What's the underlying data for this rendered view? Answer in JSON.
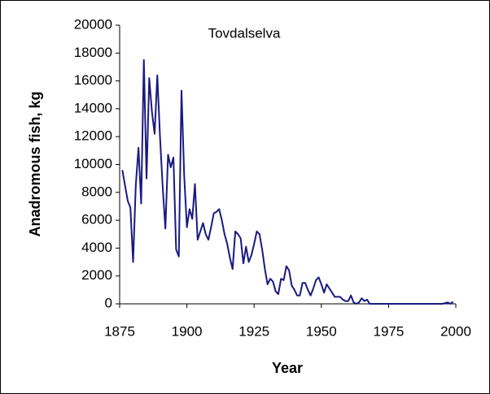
{
  "chart_data": {
    "type": "line",
    "title": "Tovdalselva",
    "x_label": "Year",
    "y_label": "Anadromous fish, kg",
    "x": [
      1876,
      1877,
      1878,
      1879,
      1880,
      1881,
      1882,
      1883,
      1884,
      1885,
      1886,
      1887,
      1888,
      1889,
      1890,
      1891,
      1892,
      1893,
      1894,
      1895,
      1896,
      1897,
      1898,
      1899,
      1900,
      1901,
      1902,
      1903,
      1904,
      1905,
      1906,
      1907,
      1908,
      1909,
      1910,
      1911,
      1912,
      1913,
      1914,
      1915,
      1916,
      1917,
      1918,
      1919,
      1920,
      1921,
      1922,
      1923,
      1924,
      1925,
      1926,
      1927,
      1928,
      1929,
      1930,
      1931,
      1932,
      1933,
      1934,
      1935,
      1936,
      1937,
      1938,
      1939,
      1940,
      1941,
      1942,
      1943,
      1944,
      1945,
      1946,
      1947,
      1948,
      1949,
      1950,
      1951,
      1952,
      1953,
      1954,
      1955,
      1956,
      1957,
      1958,
      1959,
      1960,
      1961,
      1962,
      1963,
      1964,
      1965,
      1966,
      1967,
      1968,
      1969,
      1970,
      1971,
      1972,
      1973,
      1974,
      1975,
      1976,
      1977,
      1978,
      1979,
      1980,
      1981,
      1982,
      1983,
      1984,
      1985,
      1986,
      1987,
      1988,
      1989,
      1990,
      1991,
      1992,
      1993,
      1994,
      1995,
      1996,
      1997,
      1998,
      1999
    ],
    "values": [
      9600,
      8500,
      7400,
      6900,
      3000,
      8500,
      11200,
      7200,
      17500,
      9000,
      16200,
      13800,
      12200,
      16400,
      12000,
      8400,
      5400,
      10700,
      9800,
      10500,
      3900,
      3400,
      15300,
      9200,
      5500,
      6800,
      6100,
      8600,
      4600,
      5200,
      5800,
      5000,
      4600,
      5500,
      6500,
      6600,
      6800,
      6000,
      5000,
      4300,
      3300,
      2500,
      5200,
      5000,
      4700,
      2900,
      4100,
      3000,
      3500,
      4300,
      5200,
      5000,
      3900,
      2500,
      1400,
      1800,
      1600,
      900,
      700,
      1800,
      1700,
      2700,
      2400,
      1300,
      1000,
      600,
      600,
      1500,
      1500,
      1000,
      600,
      1100,
      1700,
      1900,
      1400,
      800,
      1400,
      1100,
      800,
      500,
      500,
      500,
      300,
      200,
      200,
      600,
      100,
      0,
      100,
      400,
      200,
      300,
      0,
      0,
      0,
      0,
      0,
      0,
      0,
      0,
      0,
      0,
      0,
      0,
      0,
      0,
      0,
      0,
      0,
      0,
      0,
      0,
      0,
      0,
      0,
      0,
      0,
      0,
      0,
      0,
      50,
      100,
      0,
      150
    ],
    "color": "#1a1a80",
    "xlim": [
      1875,
      2000
    ],
    "xticks": [
      1875,
      1900,
      1925,
      1950,
      1975,
      2000
    ],
    "ylim": [
      0,
      20000
    ],
    "yticks": [
      0,
      2000,
      4000,
      6000,
      8000,
      10000,
      12000,
      14000,
      16000,
      18000,
      20000
    ],
    "grid": false
  }
}
